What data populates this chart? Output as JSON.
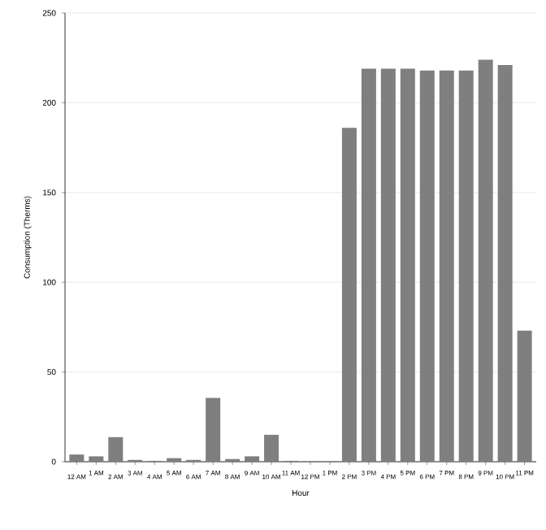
{
  "chart_data": {
    "type": "bar",
    "xlabel": "Hour",
    "ylabel": "Consumption (Therms)",
    "categories": [
      "12 AM",
      "1 AM",
      "2 AM",
      "3 AM",
      "4 AM",
      "5 AM",
      "6 AM",
      "7 AM",
      "8 AM",
      "9 AM",
      "10 AM",
      "11 AM",
      "12 PM",
      "1 PM",
      "2 PM",
      "3 PM",
      "4 PM",
      "5 PM",
      "6 PM",
      "7 PM",
      "8 PM",
      "9 PM",
      "10 PM",
      "11 PM"
    ],
    "values": [
      4,
      3,
      13.7,
      1,
      0.5,
      2,
      1,
      35.6,
      1.5,
      3,
      15,
      0.5,
      0.3,
      0.3,
      186,
      219,
      219,
      219,
      218,
      218,
      218,
      224,
      221,
      73
    ],
    "color": "#7f7f7f",
    "ylim": [
      0,
      250
    ],
    "yticks": [
      0,
      50,
      100,
      150,
      200,
      250
    ],
    "grid": "y"
  }
}
